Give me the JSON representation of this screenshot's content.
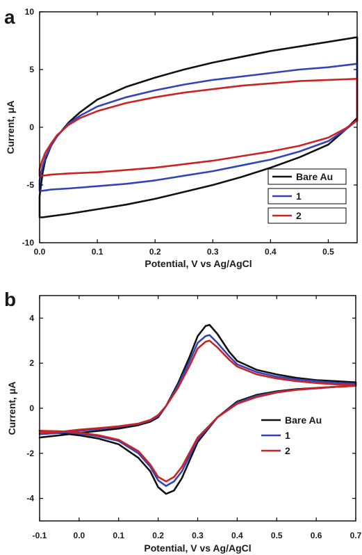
{
  "chart_data": [
    {
      "type": "line",
      "panel_label": "a",
      "xlabel": "Potential, V vs Ag/AgCl",
      "ylabel": "Current, μA",
      "xlim": [
        0,
        0.55
      ],
      "ylim": [
        -10,
        10
      ],
      "xticks": [
        "0.0",
        "0.1",
        "0.2",
        "0.3",
        "0.4",
        "0.5"
      ],
      "xtick_values": [
        0,
        0.1,
        0.2,
        0.3,
        0.4,
        0.5
      ],
      "yticks": [
        "10",
        "5",
        "0",
        "-5",
        "-10"
      ],
      "ytick_values": [
        10,
        5,
        0,
        -5,
        -10
      ],
      "legend_position": "bottom-right",
      "legend_boxed": true,
      "series": [
        {
          "name": "Bare Au",
          "color": "#111111",
          "x": [
            0.0,
            0.0,
            0.005,
            0.01,
            0.02,
            0.03,
            0.05,
            0.07,
            0.1,
            0.15,
            0.2,
            0.25,
            0.3,
            0.35,
            0.4,
            0.45,
            0.5,
            0.55,
            0.55,
            0.53,
            0.5,
            0.45,
            0.4,
            0.35,
            0.3,
            0.25,
            0.2,
            0.15,
            0.1,
            0.05,
            0.02,
            0.005,
            0.0
          ],
          "y": [
            -7.8,
            -6.0,
            -4.0,
            -2.8,
            -1.6,
            -0.8,
            0.4,
            1.3,
            2.4,
            3.5,
            4.3,
            5.0,
            5.6,
            6.1,
            6.6,
            7.0,
            7.4,
            7.8,
            0.8,
            -0.2,
            -1.5,
            -2.6,
            -3.5,
            -4.3,
            -5.0,
            -5.6,
            -6.2,
            -6.7,
            -7.1,
            -7.5,
            -7.7,
            -7.8,
            -7.8
          ]
        },
        {
          "name": "1",
          "color": "#3344bb",
          "x": [
            0.0,
            0.0,
            0.005,
            0.01,
            0.02,
            0.03,
            0.05,
            0.07,
            0.1,
            0.15,
            0.2,
            0.25,
            0.3,
            0.35,
            0.4,
            0.45,
            0.5,
            0.55,
            0.55,
            0.53,
            0.5,
            0.45,
            0.4,
            0.35,
            0.3,
            0.25,
            0.2,
            0.15,
            0.1,
            0.05,
            0.02,
            0.005,
            0.0
          ],
          "y": [
            -5.5,
            -4.6,
            -3.4,
            -2.6,
            -1.6,
            -0.8,
            0.3,
            1.0,
            1.8,
            2.6,
            3.2,
            3.7,
            4.1,
            4.4,
            4.7,
            5.0,
            5.2,
            5.5,
            0.6,
            -0.2,
            -1.2,
            -2.1,
            -2.8,
            -3.3,
            -3.8,
            -4.2,
            -4.6,
            -4.9,
            -5.1,
            -5.3,
            -5.4,
            -5.5,
            -5.5
          ]
        },
        {
          "name": "2",
          "color": "#cc2222",
          "x": [
            0.0,
            0.0,
            0.005,
            0.01,
            0.02,
            0.03,
            0.05,
            0.07,
            0.1,
            0.15,
            0.2,
            0.25,
            0.3,
            0.35,
            0.4,
            0.45,
            0.5,
            0.55,
            0.55,
            0.53,
            0.5,
            0.45,
            0.4,
            0.35,
            0.3,
            0.25,
            0.2,
            0.15,
            0.1,
            0.05,
            0.02,
            0.005,
            0.0
          ],
          "y": [
            -4.2,
            -3.6,
            -2.8,
            -2.2,
            -1.4,
            -0.7,
            0.2,
            0.8,
            1.4,
            2.1,
            2.6,
            3.0,
            3.3,
            3.6,
            3.8,
            4.0,
            4.1,
            4.2,
            0.6,
            -0.1,
            -0.9,
            -1.6,
            -2.1,
            -2.5,
            -2.9,
            -3.2,
            -3.5,
            -3.7,
            -3.9,
            -4.0,
            -4.1,
            -4.2,
            -4.2
          ]
        }
      ]
    },
    {
      "type": "line",
      "panel_label": "b",
      "xlabel": "Potential, V vs Ag/AgCl",
      "ylabel": "Current, μA",
      "xlim": [
        -0.1,
        0.7
      ],
      "ylim": [
        -5,
        5
      ],
      "xticks": [
        "-0.1",
        "0.0",
        "0.1",
        "0.2",
        "0.3",
        "0.4",
        "0.5",
        "0.6",
        "0.7"
      ],
      "xtick_values": [
        -0.1,
        0.0,
        0.1,
        0.2,
        0.3,
        0.4,
        0.5,
        0.6,
        0.7
      ],
      "yticks": [
        "4",
        "2",
        "0",
        "-2",
        "-4"
      ],
      "ytick_values": [
        4,
        2,
        0,
        -2,
        -4
      ],
      "legend_position": "right",
      "legend_boxed": false,
      "series": [
        {
          "name": "Bare Au",
          "color": "#111111",
          "x": [
            -0.1,
            -0.05,
            0.0,
            0.05,
            0.1,
            0.15,
            0.18,
            0.2,
            0.22,
            0.25,
            0.28,
            0.3,
            0.32,
            0.33,
            0.35,
            0.38,
            0.4,
            0.45,
            0.5,
            0.55,
            0.6,
            0.65,
            0.7,
            0.7,
            0.65,
            0.6,
            0.55,
            0.5,
            0.45,
            0.4,
            0.35,
            0.3,
            0.28,
            0.26,
            0.24,
            0.22,
            0.2,
            0.18,
            0.15,
            0.1,
            0.05,
            0.0,
            -0.05,
            -0.1
          ],
          "y": [
            -1.3,
            -1.2,
            -1.1,
            -1.0,
            -0.9,
            -0.75,
            -0.6,
            -0.4,
            0.1,
            1.1,
            2.3,
            3.2,
            3.65,
            3.7,
            3.3,
            2.5,
            2.1,
            1.7,
            1.5,
            1.35,
            1.25,
            1.2,
            1.15,
            1.0,
            0.95,
            0.9,
            0.85,
            0.75,
            0.6,
            0.3,
            -0.4,
            -1.5,
            -2.3,
            -3.1,
            -3.65,
            -3.8,
            -3.5,
            -2.8,
            -2.2,
            -1.6,
            -1.35,
            -1.2,
            -1.1,
            -1.0
          ]
        },
        {
          "name": "1",
          "color": "#3344bb",
          "x": [
            -0.1,
            -0.05,
            0.0,
            0.05,
            0.1,
            0.15,
            0.18,
            0.2,
            0.22,
            0.25,
            0.28,
            0.3,
            0.32,
            0.33,
            0.35,
            0.38,
            0.4,
            0.45,
            0.5,
            0.55,
            0.6,
            0.65,
            0.7,
            0.7,
            0.65,
            0.6,
            0.55,
            0.5,
            0.45,
            0.4,
            0.35,
            0.3,
            0.28,
            0.26,
            0.24,
            0.22,
            0.2,
            0.18,
            0.15,
            0.1,
            0.05,
            0.0,
            -0.05,
            -0.1
          ],
          "y": [
            -1.15,
            -1.1,
            -1.0,
            -0.92,
            -0.82,
            -0.7,
            -0.55,
            -0.35,
            0.1,
            1.0,
            2.1,
            2.9,
            3.2,
            3.25,
            2.9,
            2.3,
            1.95,
            1.6,
            1.4,
            1.28,
            1.2,
            1.12,
            1.08,
            1.0,
            0.95,
            0.88,
            0.82,
            0.72,
            0.55,
            0.25,
            -0.4,
            -1.4,
            -2.1,
            -2.8,
            -3.25,
            -3.45,
            -3.2,
            -2.6,
            -2.0,
            -1.45,
            -1.25,
            -1.12,
            -1.05,
            -1.0
          ]
        },
        {
          "name": "2",
          "color": "#cc2222",
          "x": [
            -0.1,
            -0.05,
            0.0,
            0.05,
            0.1,
            0.15,
            0.18,
            0.2,
            0.22,
            0.25,
            0.28,
            0.3,
            0.32,
            0.33,
            0.35,
            0.38,
            0.4,
            0.45,
            0.5,
            0.55,
            0.6,
            0.65,
            0.7,
            0.7,
            0.65,
            0.6,
            0.55,
            0.5,
            0.45,
            0.4,
            0.35,
            0.3,
            0.28,
            0.26,
            0.24,
            0.22,
            0.2,
            0.18,
            0.15,
            0.1,
            0.05,
            0.0,
            -0.05,
            -0.1
          ],
          "y": [
            -1.1,
            -1.05,
            -0.95,
            -0.88,
            -0.8,
            -0.68,
            -0.52,
            -0.3,
            0.1,
            0.9,
            1.9,
            2.65,
            2.95,
            3.0,
            2.7,
            2.15,
            1.85,
            1.5,
            1.32,
            1.2,
            1.12,
            1.06,
            1.02,
            1.0,
            0.95,
            0.9,
            0.82,
            0.7,
            0.5,
            0.2,
            -0.4,
            -1.3,
            -1.95,
            -2.6,
            -3.05,
            -3.25,
            -3.05,
            -2.5,
            -1.9,
            -1.4,
            -1.2,
            -1.08,
            -1.02,
            -1.0
          ]
        }
      ]
    }
  ]
}
